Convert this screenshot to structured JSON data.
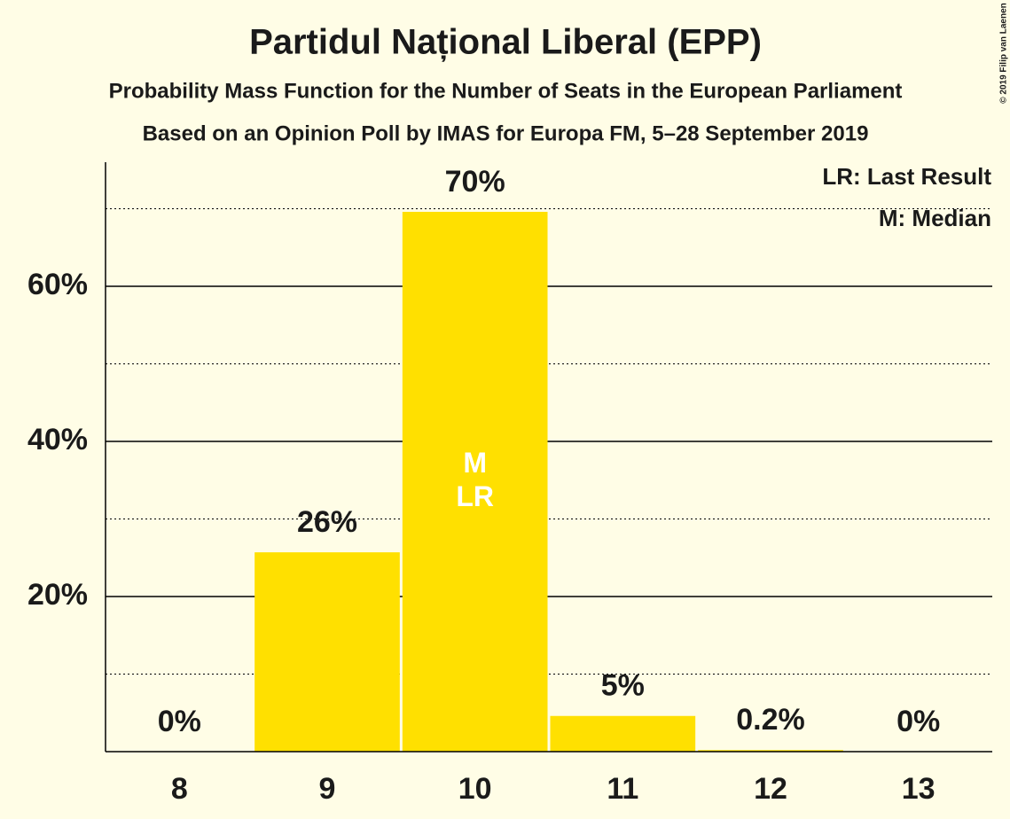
{
  "chart_data": {
    "type": "bar",
    "title": "Partidul Național Liberal (EPP)",
    "subtitle": "Probability Mass Function for the Number of Seats in the European Parliament",
    "subtitle2": "Based on an Opinion Poll by IMAS for Europa FM, 5–28 September 2019",
    "categories": [
      "8",
      "9",
      "10",
      "11",
      "12",
      "13"
    ],
    "values": [
      0,
      25.7,
      69.6,
      4.6,
      0.2,
      0
    ],
    "value_labels": [
      "0%",
      "26%",
      "70%",
      "5%",
      "0.2%",
      "0%"
    ],
    "color": "#ffe000",
    "ylim": [
      0,
      76
    ],
    "yticks": [
      {
        "value": 20,
        "label": "20%"
      },
      {
        "value": 40,
        "label": "40%"
      },
      {
        "value": 60,
        "label": "60%"
      }
    ],
    "minor_yticks": [
      10,
      30,
      50,
      70
    ],
    "grid": true,
    "bar_annotations": [
      {
        "category": "10",
        "lines": [
          "M",
          "LR"
        ]
      }
    ],
    "legend_notes": [
      "LR: Last Result",
      "M: Median"
    ],
    "credit": "© 2019 Filip van Laenen"
  }
}
